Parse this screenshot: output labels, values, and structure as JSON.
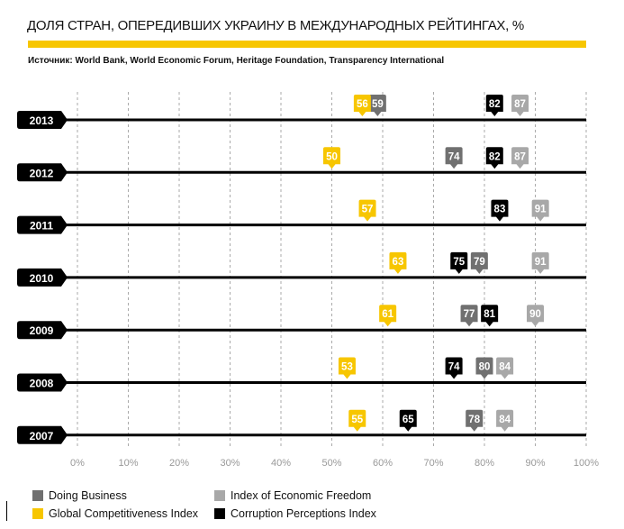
{
  "chart_data": {
    "type": "scatter",
    "title": "ДОЛЯ СТРАН, ОПЕРЕДИВШИХ УКРАИНУ В МЕЖДУНАРОДНЫХ РЕЙТИНГАХ, %",
    "source": "Источник: World Bank, World Economic Forum, Heritage Foundation, Transparency International",
    "xlim": [
      0,
      100
    ],
    "x_ticks": [
      "0%",
      "10%",
      "20%",
      "30%",
      "40%",
      "50%",
      "60%",
      "70%",
      "80%",
      "90%",
      "100%"
    ],
    "grid": true,
    "categories": [
      "2013",
      "2012",
      "2011",
      "2010",
      "2009",
      "2008",
      "2007"
    ],
    "series": [
      {
        "name": "Doing Business",
        "color": "#707070",
        "values": [
          59,
          74,
          null,
          79,
          77,
          80,
          78
        ]
      },
      {
        "name": "Global Competitiveness Index",
        "color": "#f7c600",
        "values": [
          56,
          50,
          57,
          63,
          61,
          53,
          55
        ]
      },
      {
        "name": "Index of Economic Freedom",
        "color": "#a8a8a8",
        "values": [
          87,
          87,
          91,
          91,
          90,
          84,
          84
        ]
      },
      {
        "name": "Corruption Perceptions Index",
        "color": "#000000",
        "values": [
          82,
          82,
          83,
          75,
          81,
          74,
          65
        ]
      }
    ],
    "legend_order": [
      0,
      2,
      1,
      3
    ],
    "legend_position": "bottom-left"
  }
}
